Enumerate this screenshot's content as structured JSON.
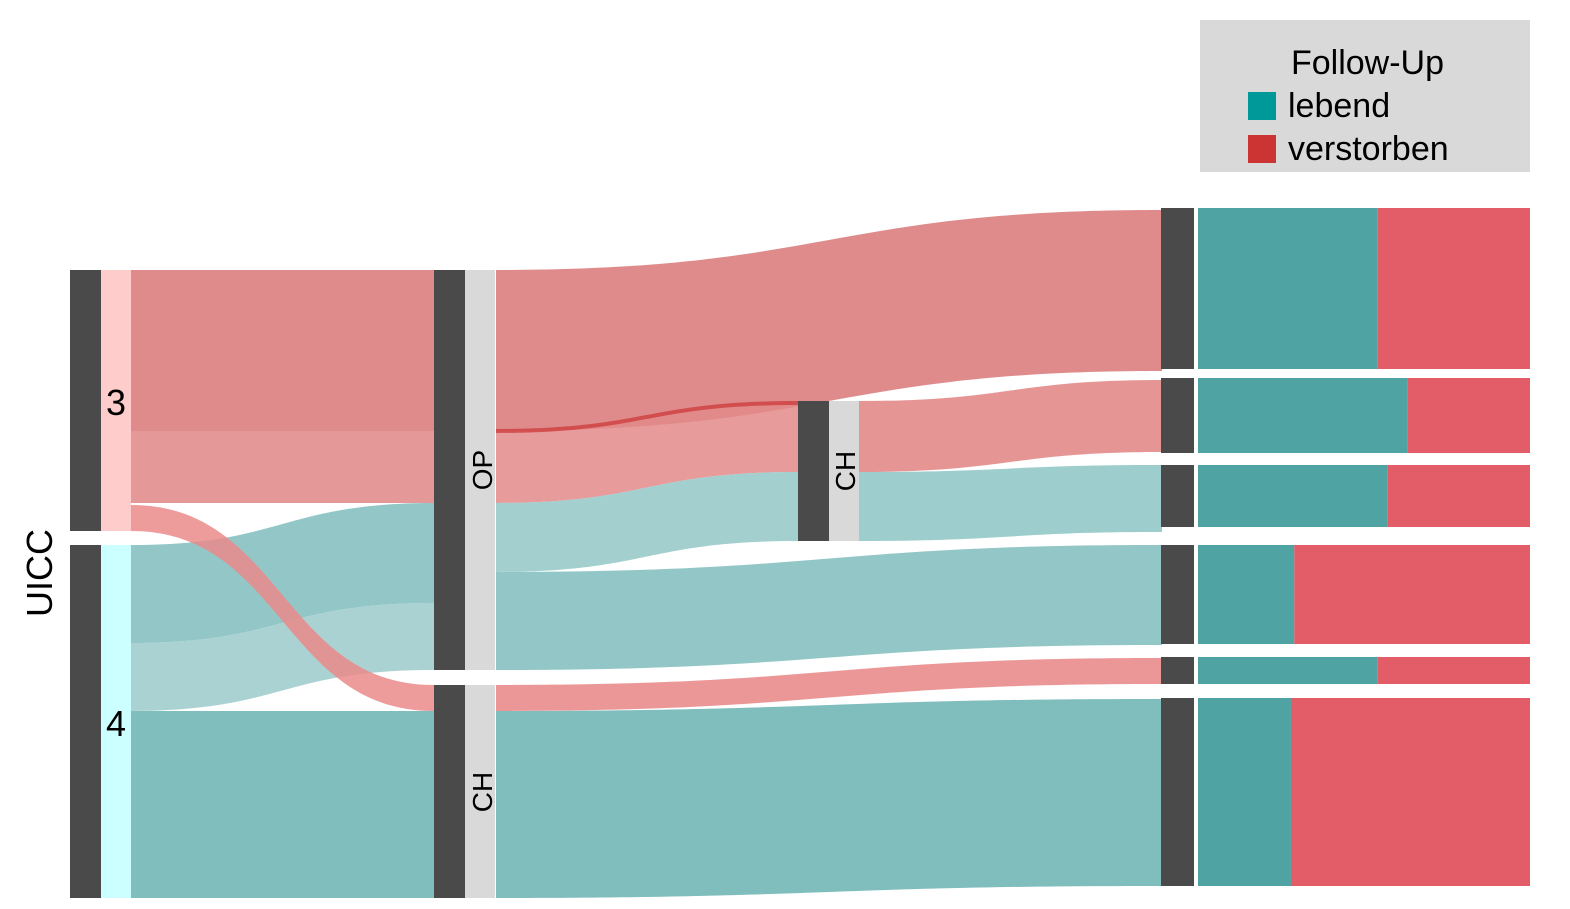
{
  "diagram": {
    "axis_title": "UICC",
    "stage_nodes": [
      {
        "label": "3",
        "group": "verstorben"
      },
      {
        "label": "4",
        "group": "lebend"
      }
    ],
    "therapy1_nodes": [
      {
        "label": "OP"
      },
      {
        "label": "CH"
      }
    ],
    "therapy2_nodes": [
      {
        "label": "CH"
      }
    ],
    "outcome_bars": [
      {
        "lebend_fraction": 0.54,
        "verstorben_fraction": 0.46
      },
      {
        "lebend_fraction": 0.63,
        "verstorben_fraction": 0.37
      },
      {
        "lebend_fraction": 0.57,
        "verstorben_fraction": 0.43
      },
      {
        "lebend_fraction": 0.29,
        "verstorben_fraction": 0.71
      },
      {
        "lebend_fraction": 0.54,
        "verstorben_fraction": 0.46
      },
      {
        "lebend_fraction": 0.28,
        "verstorben_fraction": 0.72
      }
    ]
  },
  "legend": {
    "title": "Follow-Up",
    "items": [
      {
        "label": "lebend",
        "color": "#009999"
      },
      {
        "label": "verstorben",
        "color": "#cc3333"
      }
    ]
  },
  "colors": {
    "node_dark": "#4a4a4a",
    "node_light": "#d9d9d9",
    "stage3_fill": "#ffcccc",
    "stage4_fill": "#ccffff",
    "flow_red": "#d97777",
    "flow_teal": "#80bdbd",
    "bar_teal": "#4fa3a3",
    "bar_red": "#e35d68"
  }
}
